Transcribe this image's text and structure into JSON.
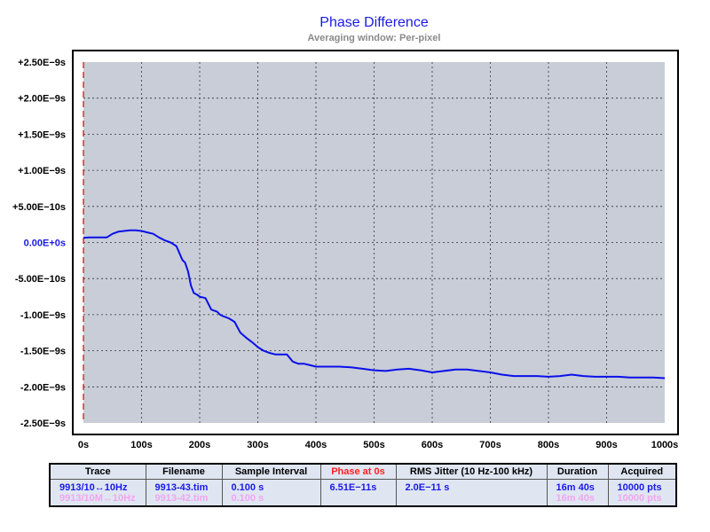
{
  "chart_data": {
    "type": "line",
    "title": "Phase Difference",
    "subtitle": "Averaging window: Per-pixel",
    "xlim": [
      0,
      1000
    ],
    "ylim": [
      -2.5e-09,
      2.5e-09
    ],
    "x_ticks": [
      {
        "value": 0,
        "label": "0s"
      },
      {
        "value": 100,
        "label": "100s"
      },
      {
        "value": 200,
        "label": "200s"
      },
      {
        "value": 300,
        "label": "300s"
      },
      {
        "value": 400,
        "label": "400s"
      },
      {
        "value": 500,
        "label": "500s"
      },
      {
        "value": 600,
        "label": "600s"
      },
      {
        "value": 700,
        "label": "700s"
      },
      {
        "value": 800,
        "label": "800s"
      },
      {
        "value": 900,
        "label": "900s"
      },
      {
        "value": 1000,
        "label": "1000s"
      }
    ],
    "y_ticks": [
      {
        "value": 2.5e-09,
        "label": "+2.50E−9s"
      },
      {
        "value": 2e-09,
        "label": "+2.00E−9s"
      },
      {
        "value": 1.5e-09,
        "label": "+1.50E−9s"
      },
      {
        "value": 1e-09,
        "label": "+1.00E−9s"
      },
      {
        "value": 5e-10,
        "label": "+5.00E−10s"
      },
      {
        "value": 0,
        "label": "0.00E+0s"
      },
      {
        "value": -5e-10,
        "label": "-5.00E−10s"
      },
      {
        "value": -1e-09,
        "label": "-1.00E−9s"
      },
      {
        "value": -1.5e-09,
        "label": "-1.50E−9s"
      },
      {
        "value": -2e-09,
        "label": "-2.00E−9s"
      },
      {
        "value": -2.5e-09,
        "label": "-2.50E−9s"
      }
    ],
    "grid": true,
    "colors": {
      "plot_bg": "#c8cdd8",
      "line": "#0a10e8",
      "grid": "#333333",
      "marker": "#e00000",
      "zero_label": "#1a1ae6"
    },
    "series": [
      {
        "x": [
          0,
          10,
          25,
          40,
          50,
          60,
          70,
          80,
          90,
          100,
          110,
          120,
          130,
          140,
          150,
          160,
          170,
          175,
          180,
          185,
          190,
          195,
          200,
          210,
          220,
          230,
          235,
          240,
          250,
          260,
          270,
          280,
          290,
          300,
          310,
          320,
          330,
          340,
          350,
          360,
          370,
          380,
          390,
          400,
          420,
          440,
          460,
          480,
          500,
          520,
          540,
          560,
          580,
          600,
          620,
          640,
          660,
          680,
          700,
          720,
          740,
          760,
          780,
          800,
          820,
          840,
          860,
          880,
          900,
          920,
          940,
          960,
          980,
          1000
        ],
        "y": [
          6.5e-11,
          7e-11,
          7e-11,
          7e-11,
          1.2e-10,
          1.5e-10,
          1.6e-10,
          1.7e-10,
          1.7e-10,
          1.6e-10,
          1.4e-10,
          1.2e-10,
          7e-11,
          3e-11,
          0.0,
          -5e-11,
          -2.4e-10,
          -2.8e-10,
          -4e-10,
          -6e-10,
          -7e-10,
          -7.2e-10,
          -7.5e-10,
          -7.7e-10,
          -9.3e-10,
          -9.6e-10,
          -1e-09,
          -1.02e-09,
          -1.05e-09,
          -1.1e-09,
          -1.25e-09,
          -1.32e-09,
          -1.38e-09,
          -1.45e-09,
          -1.5e-09,
          -1.53e-09,
          -1.55e-09,
          -1.55e-09,
          -1.55e-09,
          -1.65e-09,
          -1.68e-09,
          -1.68e-09,
          -1.7e-09,
          -1.72e-09,
          -1.72e-09,
          -1.72e-09,
          -1.73e-09,
          -1.75e-09,
          -1.77e-09,
          -1.78e-09,
          -1.76e-09,
          -1.75e-09,
          -1.77e-09,
          -1.8e-09,
          -1.78e-09,
          -1.76e-09,
          -1.76e-09,
          -1.78e-09,
          -1.8e-09,
          -1.83e-09,
          -1.85e-09,
          -1.85e-09,
          -1.85e-09,
          -1.86e-09,
          -1.85e-09,
          -1.83e-09,
          -1.85e-09,
          -1.86e-09,
          -1.86e-09,
          -1.86e-09,
          -1.87e-09,
          -1.87e-09,
          -1.87e-09,
          -1.88e-09
        ]
      }
    ]
  },
  "legend_table": {
    "headers": [
      "Trace",
      "Filename",
      "Sample Interval",
      "Phase at 0s",
      "RMS Jitter (10 Hz-100 kHz)",
      "Duration",
      "Acquired"
    ],
    "rows": [
      {
        "color": "#1a1ae6",
        "cells": [
          "9913/10↔10Hz",
          "9913-43.tim",
          "0.100 s",
          "6.51E−11s",
          "2.0E−11 s",
          "16m 40s",
          "10000 pts"
        ]
      },
      {
        "color": "#f0a6ef",
        "cells": [
          "9913/10M↔10Hz",
          "9913-42.tim",
          "0.100 s",
          "",
          "",
          "16m 40s",
          "10000 pts"
        ]
      }
    ]
  }
}
